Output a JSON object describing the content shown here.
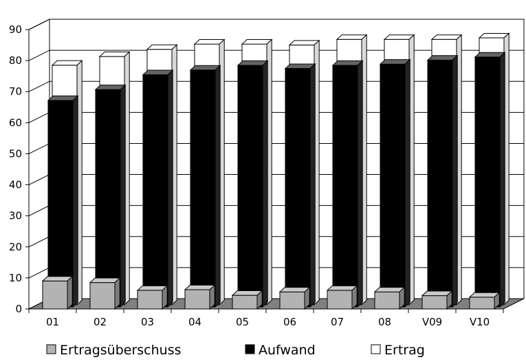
{
  "chart_data": {
    "type": "bar",
    "style": "3d-column",
    "categories": [
      "01",
      "02",
      "03",
      "04",
      "05",
      "06",
      "07",
      "08",
      "V09",
      "V10"
    ],
    "series": [
      {
        "name": "Ertragsüberschuss",
        "values": [
          9,
          8.5,
          6,
          6.2,
          4.4,
          5.5,
          6,
          5.5,
          4.3,
          3.8
        ],
        "color": "#b3b3b3"
      },
      {
        "name": "Aufwand",
        "values": [
          66.5,
          70,
          74.8,
          76.3,
          77.8,
          76.8,
          77.8,
          78.2,
          79.5,
          80.5
        ],
        "color": "#000000"
      },
      {
        "name": "Ertrag",
        "values": [
          77.2,
          80,
          82.3,
          84,
          84,
          83.7,
          85.5,
          85.5,
          85.5,
          86
        ],
        "color": "#ffffff"
      }
    ],
    "y_ticks": [
      "0",
      "10",
      "20",
      "30",
      "40",
      "50",
      "60",
      "70",
      "80",
      "90"
    ],
    "ylim": [
      0,
      90
    ],
    "grid": true,
    "floor_color": "#808080",
    "legend_position": "bottom"
  }
}
